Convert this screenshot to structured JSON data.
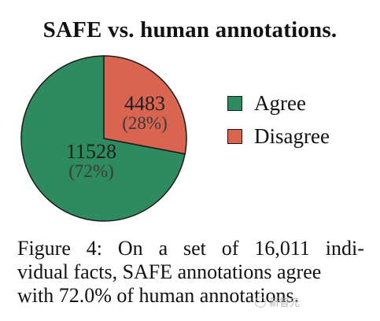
{
  "chart_data": {
    "type": "pie",
    "title": "SAFE vs. human annotations.",
    "slices": [
      {
        "label": "Agree",
        "value": 11528,
        "percent_label": "(72%)",
        "color": "#2e8b5f"
      },
      {
        "label": "Disagree",
        "value": 4483,
        "percent_label": "(28%)",
        "color": "#d96450"
      }
    ],
    "legend_position": "right"
  },
  "caption": {
    "line1_words": [
      "Figure",
      "4:",
      "On",
      "a",
      "set",
      "of",
      "16,011",
      "indi-"
    ],
    "line2": "vidual facts, SAFE annotations agree",
    "line3": "with 72.0% of human annotations."
  },
  "watermark": {
    "text": "新智元",
    "icon": "wechat-icon"
  }
}
